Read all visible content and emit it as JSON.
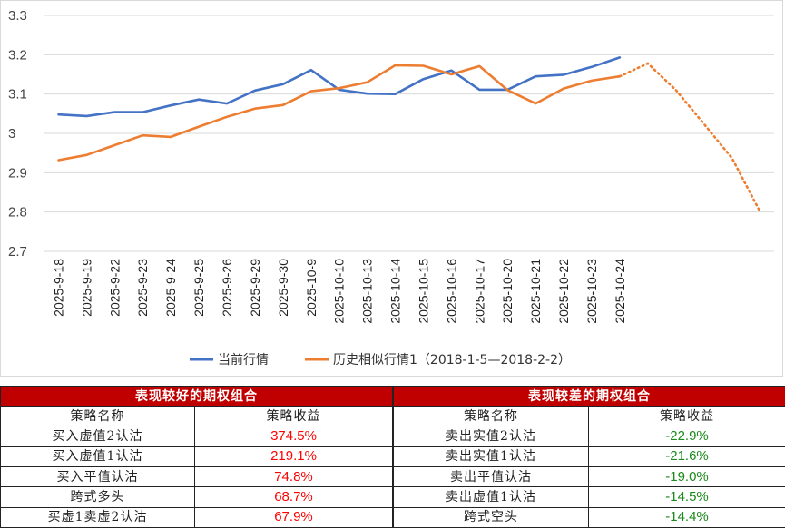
{
  "chart_data": {
    "type": "line",
    "categories": [
      "2025-9-18",
      "2025-9-19",
      "2025-9-22",
      "2025-9-23",
      "2025-9-24",
      "2025-9-25",
      "2025-9-26",
      "2025-9-29",
      "2025-9-30",
      "2025-10-9",
      "2025-10-10",
      "2025-10-13",
      "2025-10-14",
      "2025-10-15",
      "2025-10-16",
      "2025-10-17",
      "2025-10-20",
      "2025-10-21",
      "2025-10-22",
      "2025-10-23",
      "2025-10-24",
      "",
      "",
      "",
      "",
      ""
    ],
    "ylim": [
      2.7,
      3.3
    ],
    "yticks": [
      "2.7",
      "2.8",
      "2.9",
      "3",
      "3.1",
      "3.2",
      "3.3"
    ],
    "series": [
      {
        "name": "当前行情",
        "color": "#4472c4",
        "values": [
          3.048,
          3.044,
          3.054,
          3.054,
          3.071,
          3.086,
          3.076,
          3.109,
          3.125,
          3.161,
          3.111,
          3.101,
          3.1,
          3.138,
          3.16,
          3.111,
          3.111,
          3.145,
          3.149,
          3.169,
          3.193,
          null,
          null,
          null,
          null,
          null
        ]
      },
      {
        "name": "历史相似行情1（2018-1-5—2018-2-2）",
        "color": "#ed7d31",
        "values": [
          2.932,
          2.945,
          2.97,
          2.995,
          2.991,
          3.017,
          3.042,
          3.063,
          3.072,
          3.107,
          3.115,
          3.13,
          3.173,
          3.172,
          3.15,
          3.171,
          3.11,
          3.076,
          3.114,
          3.134,
          3.145,
          3.178,
          3.11,
          3.024,
          2.937,
          2.801
        ],
        "dotted_from_index": 20
      }
    ],
    "legend_position": "bottom"
  },
  "tables": {
    "good": {
      "title": "表现较好的期权组合",
      "headers": [
        "策略名称",
        "策略收益"
      ],
      "rows": [
        [
          "买入虚值2认沽",
          "374.5%"
        ],
        [
          "买入虚值1认沽",
          "219.1%"
        ],
        [
          "买入平值认沽",
          "74.8%"
        ],
        [
          "跨式多头",
          "68.7%"
        ],
        [
          "买虚1卖虚2认沽",
          "67.9%"
        ]
      ],
      "value_color": "#ff0000"
    },
    "bad": {
      "title": "表现较差的期权组合",
      "headers": [
        "策略名称",
        "策略收益"
      ],
      "rows": [
        [
          "卖出实值2认沽",
          "-22.9%"
        ],
        [
          "卖出实值1认沽",
          "-21.6%"
        ],
        [
          "卖出平值认沽",
          "-19.0%"
        ],
        [
          "卖出虚值1认沽",
          "-14.5%"
        ],
        [
          "跨式空头",
          "-14.4%"
        ]
      ],
      "value_color": "#1a8a1a"
    }
  }
}
